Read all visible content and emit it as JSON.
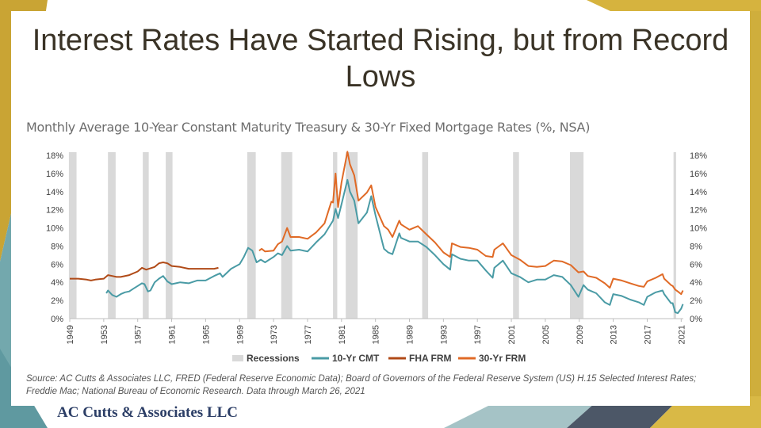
{
  "slide": {
    "title_line1": "Interest Rates Have Started Rising, but from Record",
    "title_line2": "Lows",
    "subtitle": "Monthly Average 10-Year Constant Maturity Treasury & 30-Yr Fixed Mortgage Rates (%, NSA)",
    "source": "Source: AC Cutts & Associates LLC, FRED (Federal Reserve Economic Data); Board of Governors of the Federal Reserve System (US) H.15 Selected Interest Rates; Freddie Mac; National Bureau of Economic Research. Data through March 26, 2021",
    "brand": "AC Cutts & Associates LLC"
  },
  "chart_data": {
    "type": "line",
    "title": "Monthly Average 10-Year Constant Maturity Treasury & 30-Yr Fixed Mortgage Rates (%, NSA)",
    "xlim": [
      1949,
      2021.25
    ],
    "ylim": [
      0,
      18
    ],
    "x_ticks": [
      "1949",
      "1953",
      "1957",
      "1961",
      "1965",
      "1969",
      "1973",
      "1977",
      "1981",
      "1985",
      "1989",
      "1993",
      "1997",
      "2001",
      "2005",
      "2009",
      "2013",
      "2017",
      "2021"
    ],
    "y_ticks": [
      "0%",
      "2%",
      "4%",
      "6%",
      "8%",
      "10%",
      "12%",
      "14%",
      "16%",
      "18%"
    ],
    "y_ticks_right": [
      "0%",
      "2%",
      "4%",
      "6%",
      "8%",
      "10%",
      "12%",
      "14%",
      "16%",
      "18%"
    ],
    "grid": false,
    "legend_position": "bottom",
    "legend": [
      "Recessions",
      "10-Yr CMT",
      "FHA FRM",
      "30-Yr FRM"
    ],
    "colors": {
      "recession": "#d9d9d9",
      "cmt": "#4a9ba5",
      "fha": "#b04a17",
      "frm": "#e06a26"
    },
    "recessions": [
      [
        1948.9,
        1949.8
      ],
      [
        1953.5,
        1954.4
      ],
      [
        1957.6,
        1958.3
      ],
      [
        1960.3,
        1961.1
      ],
      [
        1969.9,
        1970.9
      ],
      [
        1973.9,
        1975.2
      ],
      [
        1980.0,
        1980.5
      ],
      [
        1981.5,
        1982.9
      ],
      [
        1990.5,
        1991.2
      ],
      [
        2001.2,
        2001.9
      ],
      [
        2007.9,
        2009.5
      ],
      [
        2020.1,
        2020.4
      ]
    ],
    "series": [
      {
        "name": "10-Yr CMT",
        "x": [
          1953.3,
          1953.5,
          1954.0,
          1954.5,
          1955.0,
          1955.5,
          1956.0,
          1956.5,
          1957.0,
          1957.5,
          1957.8,
          1958.2,
          1958.5,
          1959.0,
          1959.5,
          1960.0,
          1960.5,
          1961.0,
          1961.5,
          1962.0,
          1963.0,
          1964.0,
          1965.0,
          1966.0,
          1966.7,
          1967.0,
          1968.0,
          1969.0,
          1969.5,
          1970.0,
          1970.5,
          1971.0,
          1971.5,
          1972.0,
          1973.0,
          1973.5,
          1974.0,
          1974.6,
          1975.0,
          1976.0,
          1977.0,
          1978.0,
          1979.0,
          1980.0,
          1980.3,
          1980.6,
          1981.0,
          1981.7,
          1982.0,
          1982.5,
          1983.0,
          1984.0,
          1984.5,
          1985.0,
          1986.0,
          1986.5,
          1987.0,
          1987.8,
          1988.0,
          1989.0,
          1990.0,
          1991.0,
          1992.0,
          1993.0,
          1993.8,
          1994.0,
          1995.0,
          1996.0,
          1997.0,
          1998.0,
          1998.8,
          1999.0,
          2000.0,
          2001.0,
          2002.0,
          2003.0,
          2004.0,
          2005.0,
          2006.0,
          2007.0,
          2008.0,
          2008.9,
          2009.5,
          2010.0,
          2011.0,
          2012.0,
          2012.6,
          2013.0,
          2014.0,
          2015.0,
          2016.0,
          2016.6,
          2017.0,
          2018.0,
          2018.8,
          2019.0,
          2019.8,
          2020.0,
          2020.3,
          2020.6,
          2021.0,
          2021.2
        ],
        "values": [
          2.8,
          3.1,
          2.6,
          2.4,
          2.7,
          2.9,
          3.0,
          3.3,
          3.6,
          3.9,
          3.8,
          3.0,
          3.1,
          4.0,
          4.4,
          4.7,
          4.1,
          3.8,
          3.9,
          4.0,
          3.9,
          4.2,
          4.2,
          4.7,
          5.0,
          4.6,
          5.5,
          6.0,
          6.8,
          7.8,
          7.5,
          6.2,
          6.5,
          6.2,
          6.8,
          7.2,
          7.0,
          8.0,
          7.5,
          7.6,
          7.4,
          8.4,
          9.3,
          10.8,
          12.1,
          11.1,
          12.6,
          15.3,
          14.0,
          13.0,
          10.5,
          11.7,
          13.5,
          11.4,
          7.7,
          7.3,
          7.1,
          9.4,
          8.9,
          8.5,
          8.5,
          7.9,
          7.0,
          6.0,
          5.4,
          7.1,
          6.6,
          6.4,
          6.4,
          5.3,
          4.5,
          5.6,
          6.4,
          5.0,
          4.6,
          4.0,
          4.3,
          4.3,
          4.8,
          4.6,
          3.7,
          2.4,
          3.7,
          3.2,
          2.8,
          1.8,
          1.5,
          2.7,
          2.5,
          2.1,
          1.8,
          1.5,
          2.4,
          2.9,
          3.1,
          2.7,
          1.7,
          1.7,
          0.7,
          0.6,
          1.1,
          1.6
        ]
      },
      {
        "name": "FHA FRM",
        "x": [
          1949.0,
          1950.0,
          1951.0,
          1951.5,
          1952.0,
          1953.0,
          1953.5,
          1954.0,
          1954.5,
          1955.0,
          1956.0,
          1957.0,
          1957.5,
          1958.0,
          1959.0,
          1959.5,
          1960.0,
          1960.5,
          1961.0,
          1962.0,
          1963.0,
          1964.0,
          1965.0,
          1966.0,
          1966.5
        ],
        "values": [
          4.4,
          4.4,
          4.3,
          4.2,
          4.3,
          4.4,
          4.8,
          4.7,
          4.6,
          4.6,
          4.8,
          5.2,
          5.6,
          5.4,
          5.7,
          6.1,
          6.2,
          6.1,
          5.8,
          5.7,
          5.5,
          5.5,
          5.5,
          5.5,
          5.6
        ]
      },
      {
        "name": "30-Yr FRM",
        "x": [
          1971.3,
          1971.6,
          1972.0,
          1973.0,
          1973.5,
          1974.0,
          1974.6,
          1975.0,
          1976.0,
          1977.0,
          1978.0,
          1979.0,
          1979.8,
          1980.0,
          1980.3,
          1980.6,
          1981.0,
          1981.7,
          1982.0,
          1982.5,
          1983.0,
          1984.0,
          1984.5,
          1985.0,
          1986.0,
          1986.5,
          1987.0,
          1987.8,
          1988.0,
          1989.0,
          1990.0,
          1991.0,
          1992.0,
          1993.0,
          1993.8,
          1994.0,
          1995.0,
          1996.0,
          1997.0,
          1998.0,
          1998.8,
          1999.0,
          2000.0,
          2001.0,
          2002.0,
          2003.0,
          2004.0,
          2005.0,
          2006.0,
          2007.0,
          2008.0,
          2008.9,
          2009.5,
          2010.0,
          2011.0,
          2012.0,
          2012.6,
          2013.0,
          2014.0,
          2015.0,
          2016.0,
          2016.6,
          2017.0,
          2018.0,
          2018.8,
          2019.0,
          2019.8,
          2020.0,
          2020.3,
          2020.6,
          2021.0,
          2021.2
        ],
        "values": [
          7.5,
          7.7,
          7.4,
          7.5,
          8.2,
          8.5,
          10.0,
          9.0,
          9.0,
          8.8,
          9.5,
          10.5,
          12.9,
          12.8,
          16.0,
          12.3,
          15.0,
          18.4,
          17.0,
          15.8,
          13.0,
          13.9,
          14.7,
          12.3,
          10.2,
          9.8,
          9.0,
          10.8,
          10.4,
          9.8,
          10.2,
          9.3,
          8.4,
          7.3,
          6.8,
          8.3,
          7.9,
          7.8,
          7.6,
          6.9,
          6.8,
          7.6,
          8.3,
          7.0,
          6.5,
          5.8,
          5.7,
          5.8,
          6.4,
          6.3,
          5.9,
          5.1,
          5.2,
          4.7,
          4.5,
          3.9,
          3.4,
          4.4,
          4.2,
          3.9,
          3.6,
          3.5,
          4.1,
          4.5,
          4.9,
          4.4,
          3.7,
          3.6,
          3.2,
          3.0,
          2.7,
          3.1
        ]
      }
    ]
  }
}
